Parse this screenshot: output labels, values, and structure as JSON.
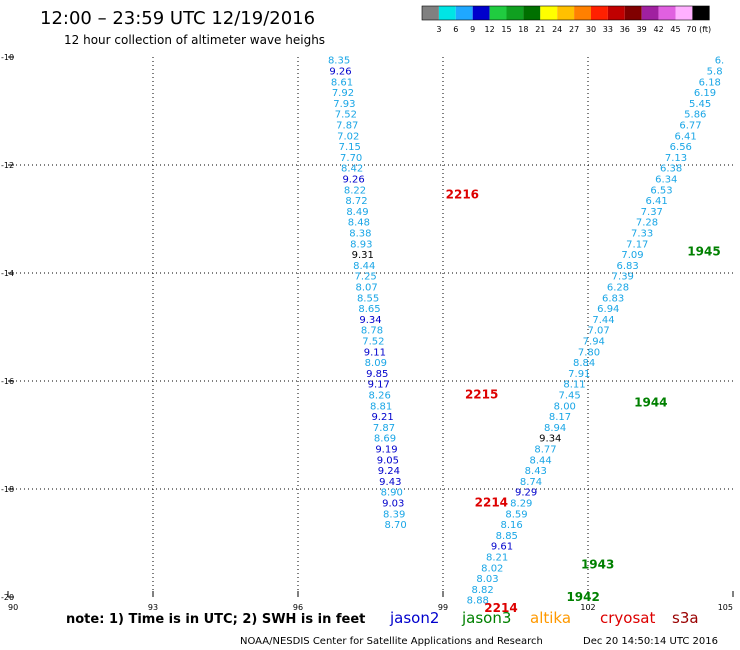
{
  "header": {
    "title": "12:00 – 23:59 UTC 12/19/2016",
    "subtitle": "12 hour collection of altimeter wave heighs"
  },
  "colorbar": {
    "labels": [
      "3",
      "6",
      "9",
      "12",
      "15",
      "18",
      "21",
      "24",
      "27",
      "30",
      "33",
      "36",
      "39",
      "42",
      "45",
      "70 (ft)"
    ],
    "colors": [
      "#808080",
      "#00e5e5",
      "#1fa8ff",
      "#0000cc",
      "#20cc40",
      "#10a020",
      "#007000",
      "#ffff00",
      "#ffc000",
      "#ff8000",
      "#ff2000",
      "#c00000",
      "#800000",
      "#a020a0",
      "#e060e0",
      "#ffb0ff",
      "#000000"
    ]
  },
  "footer": {
    "note": "note: 1) Time is in UTC; 2) SWH is in feet",
    "credit": "NOAA/NESDIS Center for Satellite Applications and Research",
    "timestamp": "Dec 20 14:50:14 UTC 2016"
  },
  "satellites": [
    {
      "name": "jason2",
      "color": "#0000cc"
    },
    {
      "name": "jason3",
      "color": "#008000"
    },
    {
      "name": "altika",
      "color": "#ff9900"
    },
    {
      "name": "cryosat",
      "color": "#dd0000"
    },
    {
      "name": "s3a",
      "color": "#990000"
    }
  ],
  "chart_data": {
    "type": "scatter",
    "title": "12:00 – 23:59 UTC 12/19/2016",
    "subtitle": "12 hour collection of altimeter wave heighs",
    "xlim": [
      90,
      105
    ],
    "ylim": [
      -20,
      -10
    ],
    "xticks": [
      "90",
      "93",
      "96",
      "99",
      "102",
      "105"
    ],
    "yticks": [
      "-10",
      "-12",
      "-14",
      "-16",
      "-18",
      "-20"
    ],
    "grid": true,
    "point_colors": {
      "cyan": "#1aa6e6",
      "blue": "#0000cc",
      "black": "#000000"
    },
    "tracks": [
      {
        "points": [
          {
            "x": 96.85,
            "y": -10.05,
            "v": "8.35",
            "c": "cyan"
          },
          {
            "x": 96.88,
            "y": -10.25,
            "v": "9.26",
            "c": "blue"
          },
          {
            "x": 96.91,
            "y": -10.45,
            "v": "8.61",
            "c": "cyan"
          },
          {
            "x": 96.93,
            "y": -10.65,
            "v": "7.92",
            "c": "cyan"
          },
          {
            "x": 96.96,
            "y": -10.85,
            "v": "7.93",
            "c": "cyan"
          },
          {
            "x": 96.99,
            "y": -11.05,
            "v": "7.52",
            "c": "cyan"
          },
          {
            "x": 97.02,
            "y": -11.25,
            "v": "7.87",
            "c": "cyan"
          },
          {
            "x": 97.04,
            "y": -11.45,
            "v": "7.02",
            "c": "cyan"
          },
          {
            "x": 97.07,
            "y": -11.65,
            "v": "7.15",
            "c": "cyan"
          },
          {
            "x": 97.1,
            "y": -11.85,
            "v": "7.70",
            "c": "cyan"
          },
          {
            "x": 97.12,
            "y": -12.05,
            "v": "8.42",
            "c": "cyan"
          },
          {
            "x": 97.15,
            "y": -12.25,
            "v": "9.26",
            "c": "blue"
          },
          {
            "x": 97.18,
            "y": -12.45,
            "v": "8.22",
            "c": "cyan"
          },
          {
            "x": 97.21,
            "y": -12.65,
            "v": "8.72",
            "c": "cyan"
          },
          {
            "x": 97.23,
            "y": -12.85,
            "v": "8.49",
            "c": "cyan"
          },
          {
            "x": 97.26,
            "y": -13.05,
            "v": "8.48",
            "c": "cyan"
          },
          {
            "x": 97.29,
            "y": -13.25,
            "v": "8.38",
            "c": "cyan"
          },
          {
            "x": 97.31,
            "y": -13.45,
            "v": "8.93",
            "c": "cyan"
          },
          {
            "x": 97.34,
            "y": -13.65,
            "v": "9.31",
            "c": "black"
          },
          {
            "x": 97.37,
            "y": -13.85,
            "v": "8.44",
            "c": "cyan"
          },
          {
            "x": 97.4,
            "y": -14.05,
            "v": "7.25",
            "c": "cyan"
          },
          {
            "x": 97.42,
            "y": -14.25,
            "v": "8.07",
            "c": "cyan"
          },
          {
            "x": 97.45,
            "y": -14.45,
            "v": "8.55",
            "c": "cyan"
          },
          {
            "x": 97.48,
            "y": -14.65,
            "v": "8.65",
            "c": "cyan"
          },
          {
            "x": 97.5,
            "y": -14.85,
            "v": "9.34",
            "c": "blue"
          },
          {
            "x": 97.53,
            "y": -15.05,
            "v": "8.78",
            "c": "cyan"
          },
          {
            "x": 97.56,
            "y": -15.25,
            "v": "7.52",
            "c": "cyan"
          },
          {
            "x": 97.59,
            "y": -15.45,
            "v": "9.11",
            "c": "blue"
          },
          {
            "x": 97.61,
            "y": -15.65,
            "v": "8.09",
            "c": "cyan"
          },
          {
            "x": 97.64,
            "y": -15.85,
            "v": "9.85",
            "c": "blue"
          },
          {
            "x": 97.67,
            "y": -16.05,
            "v": "9.17",
            "c": "blue"
          },
          {
            "x": 97.69,
            "y": -16.25,
            "v": "8.26",
            "c": "cyan"
          },
          {
            "x": 97.72,
            "y": -16.45,
            "v": "8.81",
            "c": "cyan"
          },
          {
            "x": 97.75,
            "y": -16.65,
            "v": "9.21",
            "c": "blue"
          },
          {
            "x": 97.78,
            "y": -16.85,
            "v": "7.87",
            "c": "cyan"
          },
          {
            "x": 97.8,
            "y": -17.05,
            "v": "8.69",
            "c": "cyan"
          },
          {
            "x": 97.83,
            "y": -17.25,
            "v": "9.19",
            "c": "blue"
          },
          {
            "x": 97.86,
            "y": -17.45,
            "v": "9.05",
            "c": "blue"
          },
          {
            "x": 97.88,
            "y": -17.65,
            "v": "9.24",
            "c": "blue"
          },
          {
            "x": 97.91,
            "y": -17.85,
            "v": "9.43",
            "c": "blue"
          },
          {
            "x": 97.94,
            "y": -18.05,
            "v": "8.90",
            "c": "cyan"
          },
          {
            "x": 97.97,
            "y": -18.25,
            "v": "9.03",
            "c": "blue"
          },
          {
            "x": 97.99,
            "y": -18.45,
            "v": "8.39",
            "c": "cyan"
          },
          {
            "x": 98.02,
            "y": -18.65,
            "v": "8.70",
            "c": "cyan"
          }
        ],
        "labels": [
          {
            "text": "2216",
            "x": 99.4,
            "y": -12.55,
            "color": "#dd0000"
          },
          {
            "text": "2215",
            "x": 99.8,
            "y": -16.25,
            "color": "#dd0000"
          },
          {
            "text": "2214",
            "x": 100.0,
            "y": -18.25,
            "color": "#dd0000"
          },
          {
            "text": "2214",
            "x": 100.2,
            "y": -20.2,
            "color": "#dd0000"
          }
        ]
      },
      {
        "points": [
          {
            "x": 104.72,
            "y": -10.05,
            "v": "6.",
            "c": "cyan"
          },
          {
            "x": 104.62,
            "y": -10.25,
            "v": "5.8",
            "c": "cyan"
          },
          {
            "x": 104.52,
            "y": -10.45,
            "v": "6.18",
            "c": "cyan"
          },
          {
            "x": 104.42,
            "y": -10.65,
            "v": "6.19",
            "c": "cyan"
          },
          {
            "x": 104.32,
            "y": -10.85,
            "v": "5.45",
            "c": "cyan"
          },
          {
            "x": 104.22,
            "y": -11.05,
            "v": "5.86",
            "c": "cyan"
          },
          {
            "x": 104.12,
            "y": -11.25,
            "v": "6.77",
            "c": "cyan"
          },
          {
            "x": 104.02,
            "y": -11.45,
            "v": "6.41",
            "c": "cyan"
          },
          {
            "x": 103.92,
            "y": -11.65,
            "v": "6.56",
            "c": "cyan"
          },
          {
            "x": 103.82,
            "y": -11.85,
            "v": "7.13",
            "c": "cyan"
          },
          {
            "x": 103.72,
            "y": -12.05,
            "v": "6.38",
            "c": "cyan"
          },
          {
            "x": 103.62,
            "y": -12.25,
            "v": "6.34",
            "c": "cyan"
          },
          {
            "x": 103.52,
            "y": -12.45,
            "v": "6.53",
            "c": "cyan"
          },
          {
            "x": 103.42,
            "y": -12.65,
            "v": "6.41",
            "c": "cyan"
          },
          {
            "x": 103.32,
            "y": -12.85,
            "v": "7.37",
            "c": "cyan"
          },
          {
            "x": 103.22,
            "y": -13.05,
            "v": "7.28",
            "c": "cyan"
          },
          {
            "x": 103.12,
            "y": -13.25,
            "v": "7.33",
            "c": "cyan"
          },
          {
            "x": 103.02,
            "y": -13.45,
            "v": "7.17",
            "c": "cyan"
          },
          {
            "x": 102.92,
            "y": -13.65,
            "v": "7.09",
            "c": "cyan"
          },
          {
            "x": 102.82,
            "y": -13.85,
            "v": "6.83",
            "c": "cyan"
          },
          {
            "x": 102.72,
            "y": -14.05,
            "v": "7.39",
            "c": "cyan"
          },
          {
            "x": 102.62,
            "y": -14.25,
            "v": "6.28",
            "c": "cyan"
          },
          {
            "x": 102.52,
            "y": -14.45,
            "v": "6.83",
            "c": "cyan"
          },
          {
            "x": 102.42,
            "y": -14.65,
            "v": "6.94",
            "c": "cyan"
          },
          {
            "x": 102.32,
            "y": -14.85,
            "v": "7.44",
            "c": "cyan"
          },
          {
            "x": 102.22,
            "y": -15.05,
            "v": "7.07",
            "c": "cyan"
          },
          {
            "x": 102.12,
            "y": -15.25,
            "v": "7.94",
            "c": "cyan"
          },
          {
            "x": 102.02,
            "y": -15.45,
            "v": "7.80",
            "c": "cyan"
          },
          {
            "x": 101.92,
            "y": -15.65,
            "v": "8.84",
            "c": "cyan"
          },
          {
            "x": 101.82,
            "y": -15.85,
            "v": "7.91",
            "c": "cyan"
          },
          {
            "x": 101.72,
            "y": -16.05,
            "v": "8.11",
            "c": "cyan"
          },
          {
            "x": 101.62,
            "y": -16.25,
            "v": "7.45",
            "c": "cyan"
          },
          {
            "x": 101.52,
            "y": -16.45,
            "v": "8.00",
            "c": "cyan"
          },
          {
            "x": 101.42,
            "y": -16.65,
            "v": "8.17",
            "c": "cyan"
          },
          {
            "x": 101.32,
            "y": -16.85,
            "v": "8.94",
            "c": "cyan"
          },
          {
            "x": 101.22,
            "y": -17.05,
            "v": "9.34",
            "c": "black"
          },
          {
            "x": 101.12,
            "y": -17.25,
            "v": "8.77",
            "c": "cyan"
          },
          {
            "x": 101.02,
            "y": -17.45,
            "v": "8.44",
            "c": "cyan"
          },
          {
            "x": 100.92,
            "y": -17.65,
            "v": "8.43",
            "c": "cyan"
          },
          {
            "x": 100.82,
            "y": -17.85,
            "v": "8.74",
            "c": "cyan"
          },
          {
            "x": 100.72,
            "y": -18.05,
            "v": "9.29",
            "c": "blue"
          },
          {
            "x": 100.62,
            "y": -18.25,
            "v": "8.29",
            "c": "cyan"
          },
          {
            "x": 100.52,
            "y": -18.45,
            "v": "8.59",
            "c": "cyan"
          },
          {
            "x": 100.42,
            "y": -18.65,
            "v": "8.16",
            "c": "cyan"
          },
          {
            "x": 100.32,
            "y": -18.85,
            "v": "8.85",
            "c": "cyan"
          },
          {
            "x": 100.22,
            "y": -19.05,
            "v": "9.61",
            "c": "blue"
          },
          {
            "x": 100.12,
            "y": -19.25,
            "v": "8.21",
            "c": "cyan"
          },
          {
            "x": 100.02,
            "y": -19.45,
            "v": "8.02",
            "c": "cyan"
          },
          {
            "x": 99.92,
            "y": -19.65,
            "v": "8.03",
            "c": "cyan"
          },
          {
            "x": 99.82,
            "y": -19.85,
            "v": "8.82",
            "c": "cyan"
          },
          {
            "x": 99.72,
            "y": -20.05,
            "v": "8.88",
            "c": "cyan"
          }
        ],
        "labels": [
          {
            "text": "1945",
            "x": 104.4,
            "y": -13.6,
            "color": "#008000"
          },
          {
            "text": "1944",
            "x": 103.3,
            "y": -16.4,
            "color": "#008000"
          },
          {
            "text": "1943",
            "x": 102.2,
            "y": -19.4,
            "color": "#008000"
          },
          {
            "text": "1942",
            "x": 101.9,
            "y": -20.0,
            "color": "#008000"
          }
        ]
      }
    ]
  }
}
